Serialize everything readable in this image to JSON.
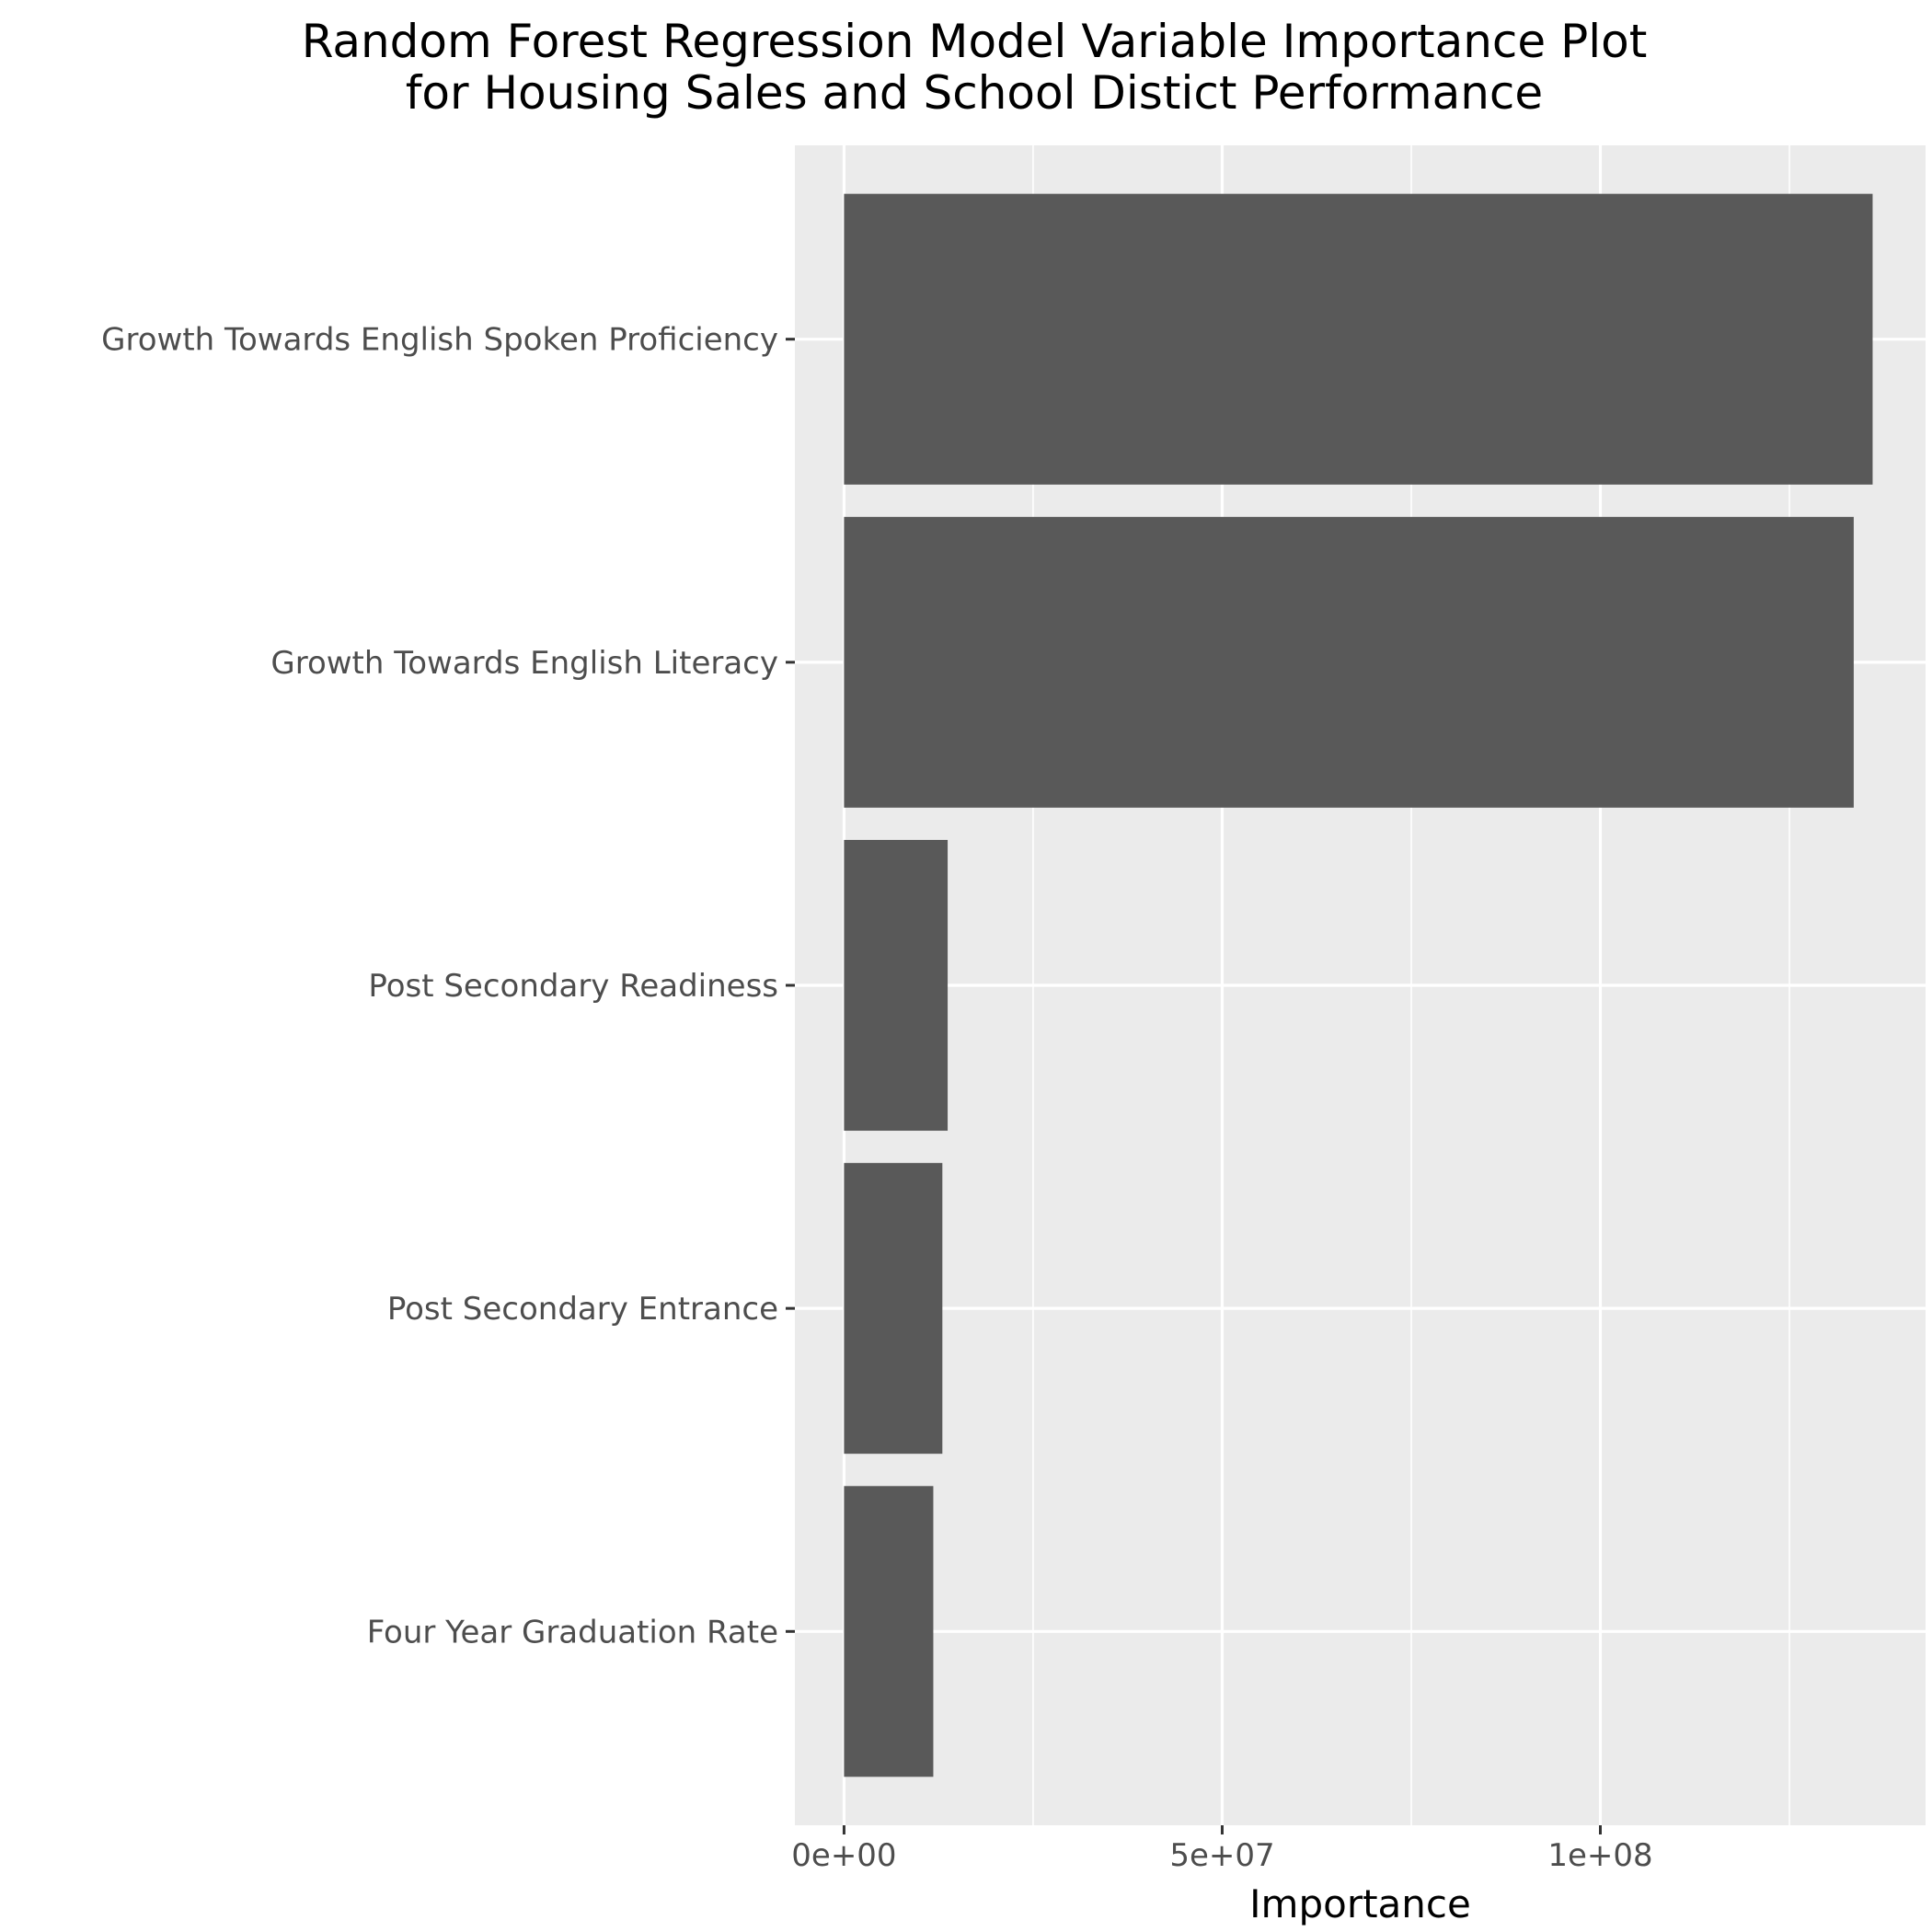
{
  "chart_data": {
    "type": "bar",
    "orientation": "horizontal",
    "title": "Random Forest Regression Model Variable Importance Plot",
    "subtitle": "for Housing Sales and  School Distict Performance",
    "xlabel": "Importance",
    "ylabel": "",
    "categories": [
      "Growth Towards English Spoken Proficiency",
      "Growth Towards English Literacy",
      "Post Secondary Readiness",
      "Post Secondary Entrance",
      "Four Year Graduation Rate"
    ],
    "values": [
      136000000,
      133500000,
      13700000,
      13000000,
      11800000
    ],
    "xlim": [
      -6500000,
      143000000
    ],
    "xticks": [
      0,
      50000000,
      100000000
    ],
    "xtick_labels": [
      "0e+00",
      "5e+07",
      "1e+08"
    ],
    "grid": true,
    "legend": "none",
    "colors": {
      "bar": "#595959",
      "panel": "#ebebeb",
      "grid": "#ffffff",
      "tick": "#333333"
    }
  }
}
